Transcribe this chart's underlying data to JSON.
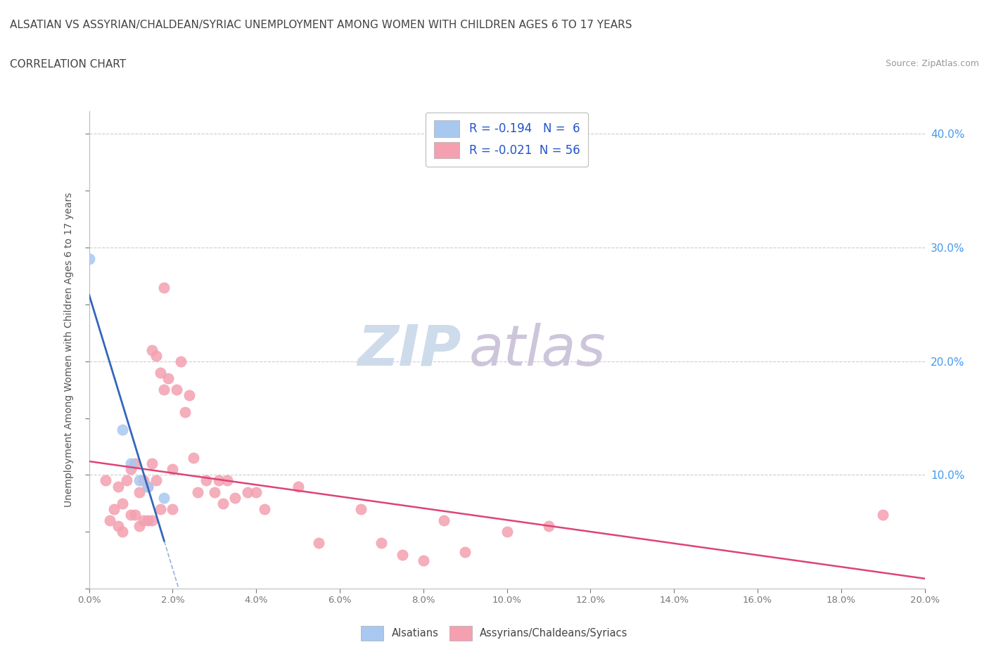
{
  "title": "ALSATIAN VS ASSYRIAN/CHALDEAN/SYRIAC UNEMPLOYMENT AMONG WOMEN WITH CHILDREN AGES 6 TO 17 YEARS",
  "subtitle": "CORRELATION CHART",
  "source": "Source: ZipAtlas.com",
  "ylabel_label": "Unemployment Among Women with Children Ages 6 to 17 years",
  "xlim": [
    0.0,
    0.2
  ],
  "ylim": [
    0.0,
    0.42
  ],
  "xticks": [
    0.0,
    0.02,
    0.04,
    0.06,
    0.08,
    0.1,
    0.12,
    0.14,
    0.16,
    0.18,
    0.2
  ],
  "xtick_labels": [
    "0.0%",
    "2.0%",
    "4.0%",
    "6.0%",
    "8.0%",
    "10.0%",
    "12.0%",
    "14.0%",
    "16.0%",
    "18.0%",
    "20.0%"
  ],
  "yticks": [
    0.0,
    0.05,
    0.1,
    0.15,
    0.2,
    0.25,
    0.3,
    0.35,
    0.4
  ],
  "right_yticks": [
    0.1,
    0.2,
    0.3,
    0.4
  ],
  "right_ytick_labels": [
    "10.0%",
    "20.0%",
    "30.0%",
    "40.0%"
  ],
  "alsatian_R": -0.194,
  "alsatian_N": 6,
  "assyrian_R": -0.021,
  "assyrian_N": 56,
  "alsatian_color": "#a8c8f0",
  "assyrian_color": "#f4a0b0",
  "alsatian_line_color": "#3366bb",
  "assyrian_line_color": "#dd4477",
  "watermark_zip_color": "#c8d8e8",
  "watermark_atlas_color": "#c8c0d8",
  "background_color": "#ffffff",
  "grid_color": "#cccccc",
  "alsatian_points_x": [
    0.0,
    0.008,
    0.01,
    0.012,
    0.014,
    0.018
  ],
  "alsatian_points_y": [
    0.29,
    0.14,
    0.11,
    0.095,
    0.09,
    0.08
  ],
  "assyrian_points_x": [
    0.004,
    0.005,
    0.006,
    0.007,
    0.007,
    0.008,
    0.008,
    0.009,
    0.01,
    0.01,
    0.011,
    0.011,
    0.012,
    0.012,
    0.013,
    0.013,
    0.014,
    0.014,
    0.015,
    0.015,
    0.015,
    0.016,
    0.016,
    0.017,
    0.017,
    0.018,
    0.018,
    0.019,
    0.02,
    0.02,
    0.021,
    0.022,
    0.023,
    0.024,
    0.025,
    0.026,
    0.028,
    0.03,
    0.031,
    0.032,
    0.033,
    0.035,
    0.038,
    0.04,
    0.042,
    0.05,
    0.055,
    0.065,
    0.07,
    0.075,
    0.08,
    0.085,
    0.09,
    0.1,
    0.11,
    0.19
  ],
  "assyrian_points_y": [
    0.095,
    0.06,
    0.07,
    0.09,
    0.055,
    0.075,
    0.05,
    0.095,
    0.105,
    0.065,
    0.11,
    0.065,
    0.085,
    0.055,
    0.095,
    0.06,
    0.09,
    0.06,
    0.21,
    0.11,
    0.06,
    0.205,
    0.095,
    0.19,
    0.07,
    0.265,
    0.175,
    0.185,
    0.105,
    0.07,
    0.175,
    0.2,
    0.155,
    0.17,
    0.115,
    0.085,
    0.095,
    0.085,
    0.095,
    0.075,
    0.095,
    0.08,
    0.085,
    0.085,
    0.07,
    0.09,
    0.04,
    0.07,
    0.04,
    0.03,
    0.025,
    0.06,
    0.032,
    0.05,
    0.055,
    0.065
  ]
}
